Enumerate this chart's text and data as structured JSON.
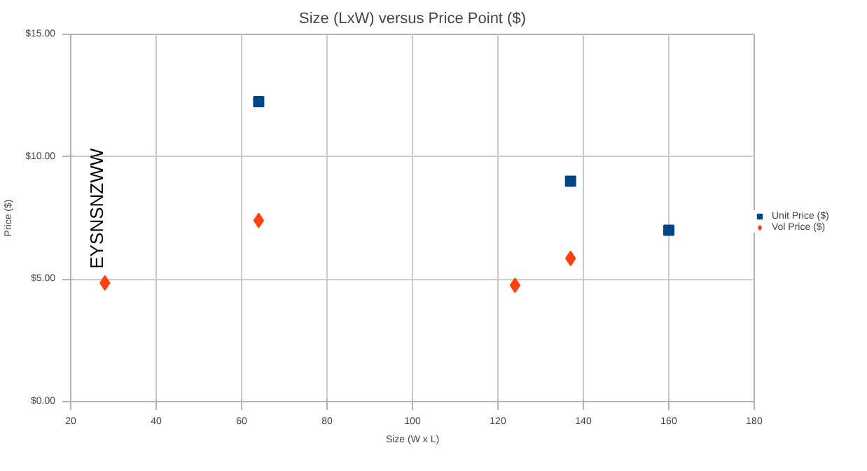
{
  "chart_data": {
    "type": "scatter",
    "title": "Size (LxW) versus Price Point ($)",
    "xlabel": "Size (W x L)",
    "ylabel": "Price ($)",
    "series": [
      {
        "name": "Unit Price ($)",
        "color": "#004586",
        "marker": "square",
        "x": [
          64,
          137,
          160
        ],
        "values": [
          12.25,
          9.0,
          7.0
        ]
      },
      {
        "name": "Vol Price ($)",
        "color": "#ff420e",
        "marker": "diamond",
        "x": [
          28,
          64,
          124,
          137
        ],
        "values": [
          4.85,
          7.4,
          4.75,
          5.85
        ]
      }
    ],
    "annotations": [
      {
        "text": "EYSNSNZWW",
        "x": 28,
        "y": 4.85
      }
    ],
    "xlim": [
      20,
      180
    ],
    "xticks": [
      20,
      40,
      60,
      80,
      100,
      120,
      140,
      160,
      180
    ],
    "ylim": [
      0,
      15
    ],
    "yticks": [
      {
        "value": 0,
        "label": "$0.00"
      },
      {
        "value": 5,
        "label": "$5.00"
      },
      {
        "value": 10,
        "label": "$10.00"
      },
      {
        "value": 15,
        "label": "$15.00"
      }
    ],
    "grid": true,
    "legend": "right"
  }
}
